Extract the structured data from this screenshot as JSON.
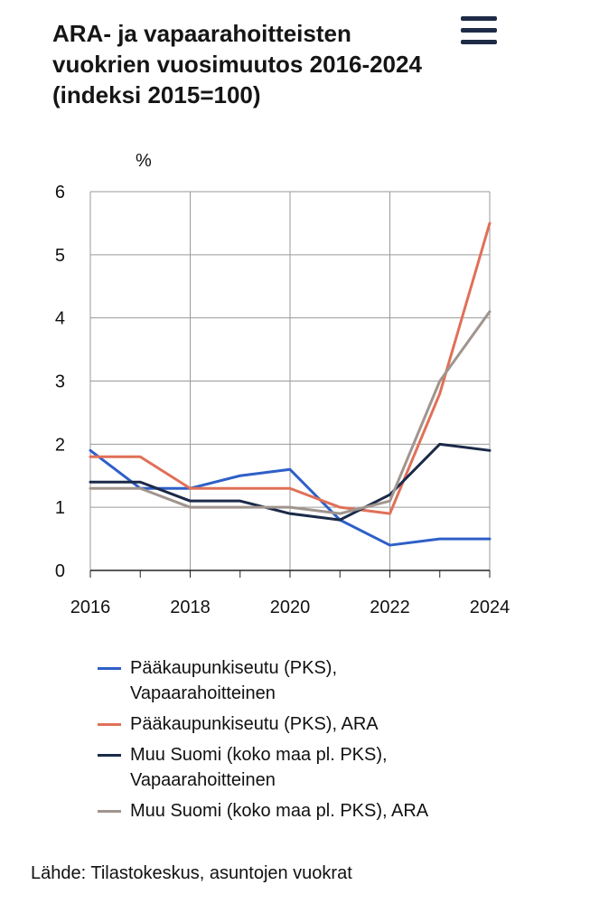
{
  "header": {
    "title_lines": [
      "ARA- ja vapaarahoitteisten",
      "vuokrien vuosimuutos 2016-2024",
      "(indeksi 2015=100)"
    ]
  },
  "menu": {
    "icon": "hamburger-menu-icon"
  },
  "chart_data": {
    "type": "line",
    "title": "ARA- ja vapaarahoitteisten vuokrien vuosimuutos 2016-2024 (indeksi 2015=100)",
    "ylabel": "%",
    "xlabel": "",
    "ylim": [
      0,
      6
    ],
    "yticks": [
      0,
      1,
      2,
      3,
      4,
      5,
      6
    ],
    "xlim": [
      2016,
      2024
    ],
    "xticks": [
      2016,
      2018,
      2020,
      2022,
      2024
    ],
    "x": [
      2016,
      2017,
      2018,
      2019,
      2020,
      2021,
      2022,
      2023,
      2024
    ],
    "grid": true,
    "legend_position": "bottom",
    "series": [
      {
        "name_lines": [
          "Pääkaupunkiseutu (PKS),",
          "Vapaarahoitteinen"
        ],
        "color": "#2f5fc8",
        "values": [
          1.9,
          1.3,
          1.3,
          1.5,
          1.6,
          0.8,
          0.4,
          0.5,
          0.5
        ]
      },
      {
        "name_lines": [
          "Pääkaupunkiseutu (PKS), ARA"
        ],
        "color": "#e07058",
        "values": [
          1.8,
          1.8,
          1.3,
          1.3,
          1.3,
          1.0,
          0.9,
          2.8,
          5.5
        ]
      },
      {
        "name_lines": [
          "Muu Suomi (koko maa pl. PKS),",
          "Vapaarahoitteinen"
        ],
        "color": "#1b2a48",
        "values": [
          1.4,
          1.4,
          1.1,
          1.1,
          0.9,
          0.8,
          1.2,
          2.0,
          1.9
        ]
      },
      {
        "name_lines": [
          "Muu Suomi (koko maa pl. PKS), ARA"
        ],
        "color": "#a0958e",
        "values": [
          1.3,
          1.3,
          1.0,
          1.0,
          1.0,
          0.9,
          1.1,
          3.0,
          4.1
        ]
      }
    ]
  },
  "footer": {
    "source": "Lähde: Tilastokeskus, asuntojen vuokrat"
  }
}
